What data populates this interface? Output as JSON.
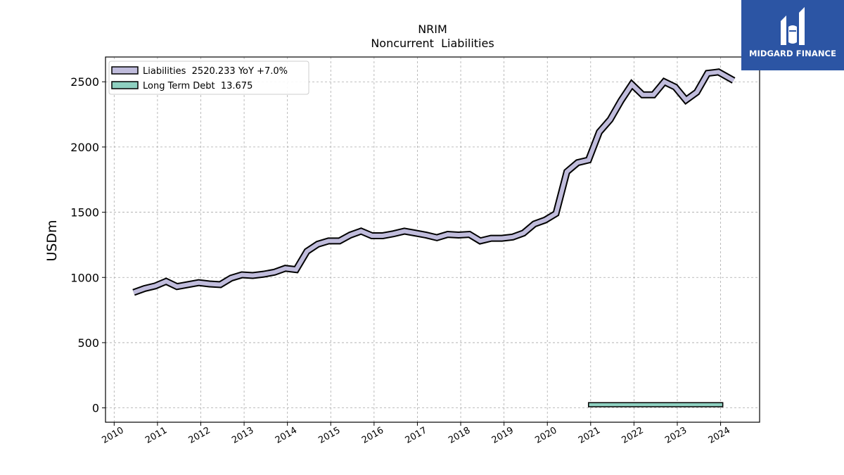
{
  "chart_data": {
    "type": "line",
    "title": "NRIM",
    "subtitle": "Noncurrent  Liabilities",
    "ylabel": "USDm",
    "xlabel": "",
    "ylim": [
      -110,
      2690
    ],
    "xlim": [
      2009.8,
      2024.9
    ],
    "yticks": [
      0,
      500,
      1000,
      1500,
      2000,
      2500
    ],
    "xticks": [
      "2010",
      "2011",
      "2012",
      "2013",
      "2014",
      "2015",
      "2016",
      "2017",
      "2018",
      "2019",
      "2020",
      "2021",
      "2022",
      "2023",
      "2024"
    ],
    "grid": true,
    "legend_position": "top-left",
    "series": [
      {
        "name": "Liabilities",
        "legend_label": "Liabilities  2520.233 YoY +7.0%",
        "color": "#c0bcdc",
        "x": [
          2010.45,
          2010.7,
          2010.95,
          2011.2,
          2011.45,
          2011.7,
          2011.95,
          2012.2,
          2012.45,
          2012.7,
          2012.95,
          2013.2,
          2013.45,
          2013.7,
          2013.95,
          2014.2,
          2014.45,
          2014.7,
          2014.95,
          2015.2,
          2015.45,
          2015.7,
          2015.95,
          2016.2,
          2016.45,
          2016.7,
          2016.95,
          2017.2,
          2017.45,
          2017.7,
          2017.95,
          2018.2,
          2018.45,
          2018.7,
          2018.95,
          2019.2,
          2019.45,
          2019.7,
          2019.95,
          2020.2,
          2020.45,
          2020.7,
          2020.95,
          2021.2,
          2021.45,
          2021.7,
          2021.95,
          2022.2,
          2022.45,
          2022.7,
          2022.95,
          2023.2,
          2023.45,
          2023.7,
          2023.95,
          2024.3
        ],
        "values": [
          885,
          915,
          935,
          970,
          930,
          945,
          960,
          950,
          945,
          995,
          1020,
          1015,
          1025,
          1040,
          1070,
          1060,
          1200,
          1255,
          1280,
          1280,
          1325,
          1355,
          1320,
          1320,
          1335,
          1355,
          1340,
          1325,
          1305,
          1330,
          1325,
          1330,
          1280,
          1300,
          1300,
          1310,
          1340,
          1410,
          1440,
          1490,
          1810,
          1880,
          1900,
          2115,
          2210,
          2355,
          2480,
          2400,
          2400,
          2500,
          2460,
          2360,
          2420,
          2565,
          2575,
          2510
        ]
      },
      {
        "name": "Long Term Debt",
        "legend_label": "Long Term Debt  13.675",
        "color": "#8ed0c0",
        "bar_start": 2020.95,
        "bar_end": 2024.05,
        "bar_value": 13.675,
        "bar_top": 40
      }
    ]
  },
  "brand": {
    "name": "MIDGARD FINANCE",
    "icon": "midgard-logo-icon",
    "color": "#2c55a4"
  }
}
